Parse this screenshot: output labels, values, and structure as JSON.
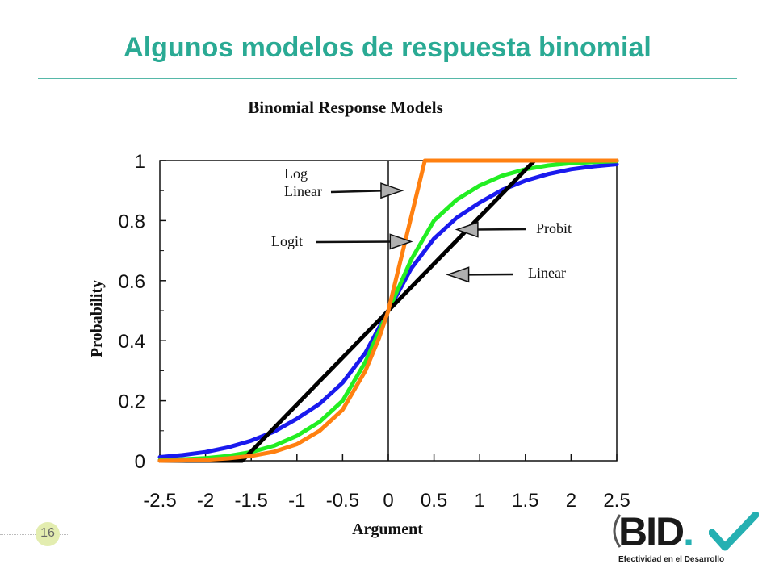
{
  "slide": {
    "title": "Algunos modelos de respuesta binomial",
    "page_number": "16",
    "colors": {
      "title": "#2aaa94",
      "rule": "#56b8a8",
      "page_circle": "#e3edb0"
    }
  },
  "logo": {
    "wordmark": "BID",
    "dot": ".",
    "tagline": "Efectividad en el Desarrollo",
    "colors": {
      "wordmark": "#1a1a1a",
      "check": "#25b0b2",
      "arc": "#555555"
    }
  },
  "chart_data": {
    "type": "line",
    "title": "Binomial Response Models",
    "xlabel": "Argument",
    "ylabel": "Probability",
    "xlim": [
      -2.5,
      2.5
    ],
    "ylim": [
      0,
      1
    ],
    "x_ticks": [
      "-2.5",
      "-2",
      "-1.5",
      "-1",
      "-0.5",
      "0",
      "0.5",
      "1",
      "1.5",
      "2",
      "2.5"
    ],
    "y_ticks": [
      "0",
      "0.2",
      "0.4",
      "0.6",
      "0.8",
      "1"
    ],
    "grid": false,
    "series": [
      {
        "name": "Linear",
        "color": "#000000",
        "x": [
          -2.5,
          -1.6,
          1.6,
          2.5
        ],
        "y": [
          0,
          0,
          1,
          1
        ]
      },
      {
        "name": "Probit",
        "color": "#1a1aee",
        "x": [
          -2.5,
          -2.25,
          -2,
          -1.75,
          -1.5,
          -1.25,
          -1,
          -0.75,
          -0.5,
          -0.25,
          0,
          0.25,
          0.5,
          0.75,
          1,
          1.25,
          1.5,
          1.75,
          2,
          2.25,
          2.5
        ],
        "y": [
          0.012,
          0.019,
          0.029,
          0.045,
          0.067,
          0.097,
          0.14,
          0.19,
          0.26,
          0.36,
          0.5,
          0.64,
          0.74,
          0.81,
          0.86,
          0.903,
          0.933,
          0.955,
          0.971,
          0.981,
          0.988
        ]
      },
      {
        "name": "Logit",
        "color": "#22ee22",
        "x": [
          -2.5,
          -2.25,
          -2,
          -1.75,
          -1.5,
          -1.25,
          -1,
          -0.75,
          -0.5,
          -0.25,
          0,
          0.25,
          0.5,
          0.75,
          1,
          1.25,
          1.5,
          1.75,
          2,
          2.25,
          2.5
        ],
        "y": [
          0.002,
          0.005,
          0.009,
          0.016,
          0.029,
          0.05,
          0.083,
          0.13,
          0.2,
          0.33,
          0.5,
          0.67,
          0.8,
          0.87,
          0.917,
          0.95,
          0.971,
          0.984,
          0.991,
          0.995,
          0.998
        ]
      },
      {
        "name": "Log Linear",
        "color": "#ff8010",
        "x": [
          -2.5,
          -2.25,
          -2,
          -1.75,
          -1.5,
          -1.25,
          -1,
          -0.75,
          -0.5,
          -0.25,
          -0.1,
          0,
          0.4,
          2.5
        ],
        "y": [
          0,
          0.001,
          0.003,
          0.008,
          0.016,
          0.03,
          0.055,
          0.1,
          0.17,
          0.3,
          0.41,
          0.5,
          1,
          1
        ]
      }
    ],
    "annotations": [
      {
        "text": [
          "Log",
          "Linear"
        ],
        "series": "Log Linear",
        "x": 0.15,
        "y": 0.9
      },
      {
        "text": [
          "Logit"
        ],
        "series": "Logit",
        "x": 0.25,
        "y": 0.73
      },
      {
        "text": [
          "Probit"
        ],
        "series": "Probit",
        "x": 0.75,
        "y": 0.77
      },
      {
        "text": [
          "Linear"
        ],
        "series": "Linear",
        "x": 0.65,
        "y": 0.62
      }
    ]
  }
}
